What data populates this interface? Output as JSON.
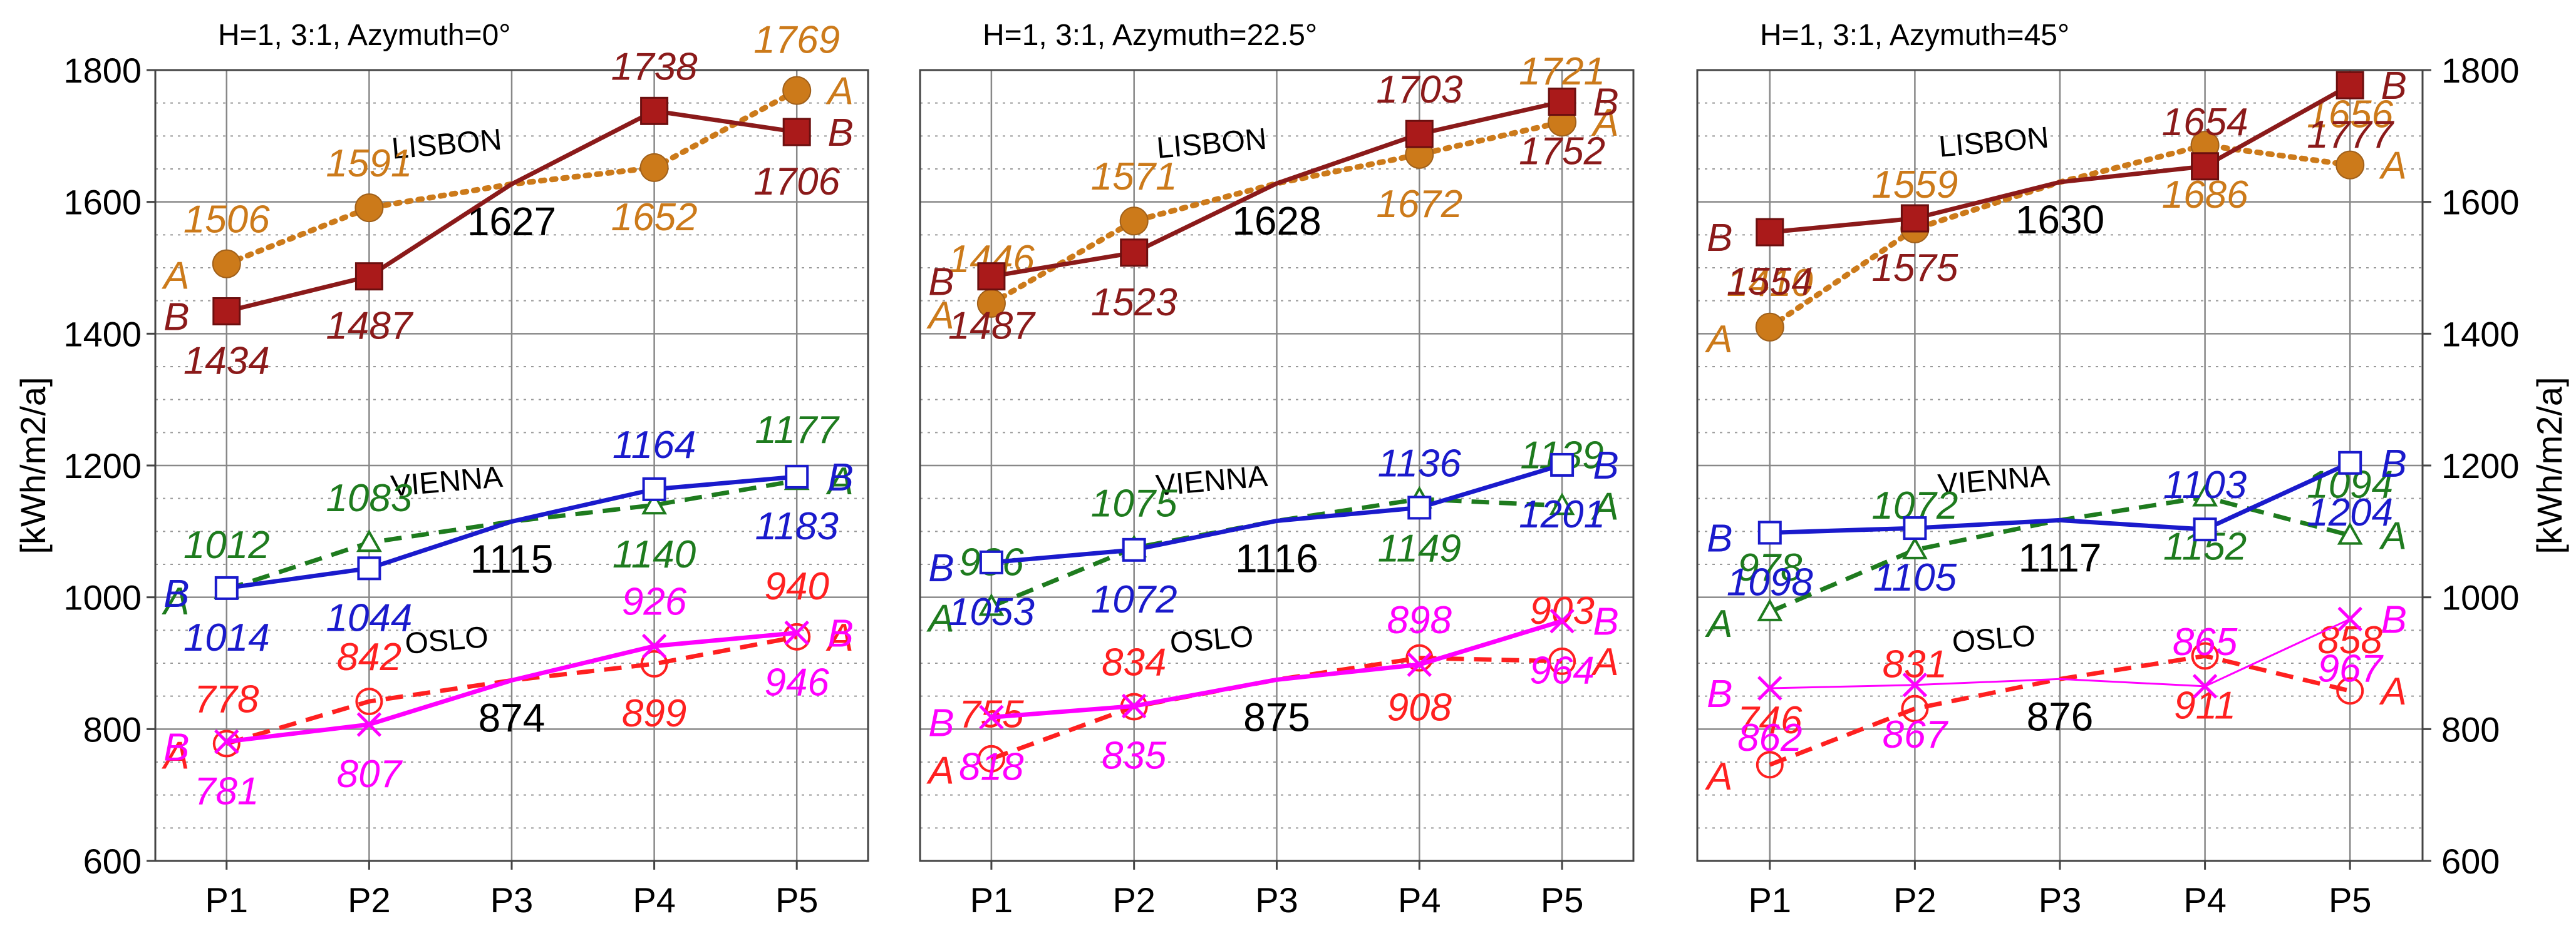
{
  "chart_data": [
    {
      "type": "line",
      "title": "H=1, 3:1, Azymuth=0°",
      "categories": [
        "P1",
        "P2",
        "P3",
        "P4",
        "P5"
      ],
      "ylabel": "[kWh/m2/a]",
      "ylim": [
        600,
        1800
      ],
      "yticks": [
        600,
        800,
        1000,
        1200,
        1400,
        1600,
        1800
      ],
      "grid": true,
      "cities": [
        {
          "name": "LISBON",
          "middle_value": 1627,
          "middle_label": "1627"
        },
        {
          "name": "VIENNA",
          "middle_value": 1115,
          "middle_label": "1115"
        },
        {
          "name": "OSLO",
          "middle_value": 874,
          "middle_label": "874"
        }
      ],
      "series": [
        {
          "city": "LISBON",
          "variant": "A",
          "color": "#CC7A1A",
          "dash": "dotted",
          "marker": "filled-circle",
          "values": [
            1506,
            1591,
            1627,
            1652,
            1769
          ],
          "labels": [
            "1506",
            "1591",
            "",
            "1652",
            "1769"
          ]
        },
        {
          "city": "LISBON",
          "variant": "B",
          "color": "#8B1A1A",
          "dash": "solid",
          "marker": "filled-square",
          "values": [
            1434,
            1487,
            1627,
            1738,
            1706
          ],
          "labels": [
            "1434",
            "1487",
            "",
            "1738",
            "1706"
          ]
        },
        {
          "city": "VIENNA",
          "variant": "A",
          "color": "#1E7B1E",
          "dash": "dashed",
          "marker": "triangle",
          "values": [
            1012,
            1083,
            1115,
            1140,
            1177
          ],
          "labels": [
            "1012",
            "1083",
            "",
            "1140",
            "1177"
          ]
        },
        {
          "city": "VIENNA",
          "variant": "B",
          "color": "#1A1ACC",
          "dash": "solid",
          "marker": "open-square",
          "values": [
            1014,
            1044,
            1115,
            1164,
            1183
          ],
          "labels": [
            "1014",
            "1044",
            "",
            "1164",
            "1183"
          ]
        },
        {
          "city": "OSLO",
          "variant": "A",
          "color": "#FF2020",
          "dash": "dashed",
          "marker": "open-circle",
          "values": [
            778,
            842,
            874,
            899,
            940
          ],
          "labels": [
            "778",
            "842",
            "",
            "899",
            "940"
          ]
        },
        {
          "city": "OSLO",
          "variant": "B",
          "color": "#FF00FF",
          "dash": "solid",
          "marker": "x",
          "values": [
            781,
            807,
            874,
            926,
            946
          ],
          "labels": [
            "781",
            "807",
            "",
            "926",
            "946"
          ]
        }
      ]
    },
    {
      "type": "line",
      "title": "H=1, 3:1, Azymuth=22.5°",
      "categories": [
        "P1",
        "P2",
        "P3",
        "P4",
        "P5"
      ],
      "ylabel": "",
      "ylim": [
        600,
        1800
      ],
      "yticks": [
        600,
        800,
        1000,
        1200,
        1400,
        1600,
        1800
      ],
      "grid": true,
      "cities": [
        {
          "name": "LISBON",
          "middle_value": 1628,
          "middle_label": "1628"
        },
        {
          "name": "VIENNA",
          "middle_value": 1116,
          "middle_label": "1116"
        },
        {
          "name": "OSLO",
          "middle_value": 875,
          "middle_label": "875"
        }
      ],
      "series": [
        {
          "city": "LISBON",
          "variant": "A",
          "color": "#CC7A1A",
          "dash": "dotted",
          "marker": "filled-circle",
          "values": [
            1446,
            1571,
            1628,
            1672,
            1721
          ],
          "labels": [
            "1446",
            "1571",
            "",
            "1672",
            "1721"
          ]
        },
        {
          "city": "LISBON",
          "variant": "B",
          "color": "#8B1A1A",
          "dash": "solid",
          "marker": "filled-square",
          "values": [
            1487,
            1523,
            1628,
            1703,
            1752
          ],
          "labels": [
            "1487",
            "1523",
            "",
            "1703",
            "1752"
          ]
        },
        {
          "city": "VIENNA",
          "variant": "A",
          "color": "#1E7B1E",
          "dash": "dashed",
          "marker": "triangle",
          "values": [
            986,
            1075,
            1116,
            1149,
            1139
          ],
          "labels": [
            "986",
            "1075",
            "",
            "1149",
            "1139"
          ]
        },
        {
          "city": "VIENNA",
          "variant": "B",
          "color": "#1A1ACC",
          "dash": "solid",
          "marker": "open-square",
          "values": [
            1053,
            1072,
            1116,
            1136,
            1201
          ],
          "labels": [
            "1053",
            "1072",
            "",
            "1136",
            "1201"
          ]
        },
        {
          "city": "OSLO",
          "variant": "A",
          "color": "#FF2020",
          "dash": "dashed",
          "marker": "open-circle",
          "values": [
            755,
            834,
            875,
            908,
            903
          ],
          "labels": [
            "755",
            "834",
            "",
            "908",
            "903"
          ]
        },
        {
          "city": "OSLO",
          "variant": "B",
          "color": "#FF00FF",
          "dash": "solid",
          "marker": "x",
          "values": [
            818,
            835,
            875,
            898,
            964
          ],
          "labels": [
            "818",
            "835",
            "",
            "898",
            "964"
          ]
        }
      ]
    },
    {
      "type": "line",
      "title": "H=1, 3:1, Azymuth=45°",
      "categories": [
        "P1",
        "P2",
        "P3",
        "P4",
        "P5"
      ],
      "ylabel": "[kWh/m2/a]",
      "ylim": [
        600,
        1800
      ],
      "yticks": [
        600,
        800,
        1000,
        1200,
        1400,
        1600,
        1800
      ],
      "grid": true,
      "cities": [
        {
          "name": "LISBON",
          "middle_value": 1630,
          "middle_label": "1630"
        },
        {
          "name": "VIENNA",
          "middle_value": 1117,
          "middle_label": "1117"
        },
        {
          "name": "OSLO",
          "middle_value": 876,
          "middle_label": "876"
        }
      ],
      "series": [
        {
          "city": "LISBON",
          "variant": "A",
          "color": "#CC7A1A",
          "dash": "dotted",
          "marker": "filled-circle",
          "values": [
            1410,
            1559,
            1630,
            1686,
            1656
          ],
          "labels": [
            "1410",
            "1559",
            "",
            "1686",
            "1656"
          ]
        },
        {
          "city": "LISBON",
          "variant": "B",
          "color": "#8B1A1A",
          "dash": "solid",
          "marker": "filled-square",
          "values": [
            1554,
            1575,
            1630,
            1654,
            1777
          ],
          "labels": [
            "1554",
            "1575",
            "",
            "1654",
            "1777"
          ]
        },
        {
          "city": "VIENNA",
          "variant": "A",
          "color": "#1E7B1E",
          "dash": "dashed",
          "marker": "triangle",
          "values": [
            978,
            1072,
            1117,
            1152,
            1094
          ],
          "labels": [
            "978",
            "1072",
            "",
            "1152",
            "1094"
          ]
        },
        {
          "city": "VIENNA",
          "variant": "B",
          "color": "#1A1ACC",
          "dash": "solid",
          "marker": "open-square",
          "values": [
            1098,
            1105,
            1117,
            1103,
            1204
          ],
          "labels": [
            "1098",
            "1105",
            "",
            "1103",
            "1204"
          ]
        },
        {
          "city": "OSLO",
          "variant": "A",
          "color": "#FF2020",
          "dash": "dashed",
          "marker": "open-circle",
          "values": [
            746,
            831,
            876,
            911,
            858
          ],
          "labels": [
            "746",
            "831",
            "",
            "911",
            "858"
          ]
        },
        {
          "city": "OSLO",
          "variant": "B",
          "color": "#FF00FF",
          "dash": "solid",
          "marker": "x",
          "values": [
            862,
            867,
            876,
            865,
            967
          ],
          "labels": [
            "862",
            "867",
            "",
            "865",
            "967"
          ]
        }
      ]
    }
  ]
}
